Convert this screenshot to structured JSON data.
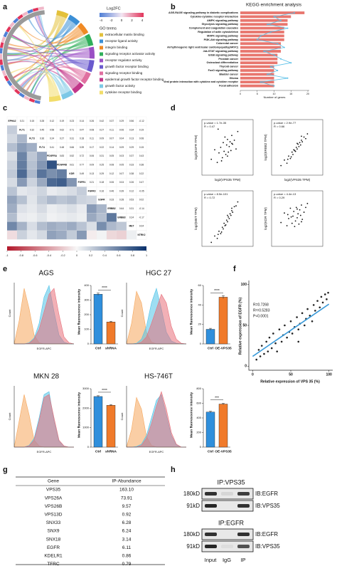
{
  "panel_labels": [
    "a",
    "b",
    "c",
    "d",
    "e",
    "f",
    "g",
    "h"
  ],
  "chord": {
    "legend_title": "Log2FC",
    "scale_ticks": [
      -4,
      -2,
      0,
      2,
      4
    ],
    "terms_title": "GO terms",
    "terms": [
      "extracellular matrix binding",
      "receptor ligand activity",
      "integrin binding",
      "signaling receptor activator activity",
      "receptor regulator activity",
      "growth factor receptor binding",
      "signaling receptor binding",
      "epidermal growth factor receptor binding",
      "growth factor activity",
      "cytokine receptor binding"
    ],
    "colors": [
      "#e3c13b",
      "#3b8fd6",
      "#f08a24",
      "#2fae5a",
      "#9a4fc4",
      "#6a5acd",
      "#e06fa0",
      "#c2378a",
      "#7cc8e6",
      "#f2dd6a"
    ]
  },
  "kegg": {
    "type": "bar",
    "title": "KEGG enrichment analysis",
    "x_label": "Number of genes",
    "categories": [
      "AGE-RAGE signaling pathway in diabetic complications",
      "Cytokine-cytokine receptor interaction",
      "AMPK signaling pathway",
      "Glycolysis signaling pathway",
      "Complement and coagulation cascades",
      "Regulation of actin cytoskeleton",
      "MAPK signaling pathway",
      "PI3K-Akt signaling pathway",
      "Colorectal cancer",
      "Arrhythmogenic right ventricular cardiomyopathy(ARVC)",
      "Jak-STAT signaling pathway",
      "ErbB signaling pathway",
      "Prostate cancer",
      "Osteoclast differentiation",
      "Thyroid cancer",
      "FoxO signaling pathway",
      "Bladder cancer",
      "Glioma",
      "Viral protein interaction with cytokine and cytokine receptor",
      "Focal adhesion"
    ],
    "values": [
      19,
      15,
      14,
      14,
      13,
      13,
      13,
      13,
      12,
      12,
      12,
      11,
      11,
      11,
      10,
      10,
      10,
      10,
      10,
      10
    ],
    "color": "#e8766e",
    "xlim": [
      0,
      20
    ],
    "xticks": [
      0,
      5,
      10,
      15,
      20
    ],
    "line_values": [
      16,
      10,
      12,
      8,
      14,
      9,
      6,
      5,
      11,
      13,
      7,
      10,
      12,
      15,
      9,
      11,
      8,
      14,
      6,
      10
    ],
    "line_color": "#5bc0e8",
    "x2lim": [
      0,
      20
    ]
  },
  "heatmap": {
    "type": "heatmap",
    "genes": [
      "EPHA2",
      "FLT1",
      "FLT3",
      "FLT4",
      "PDGFRA",
      "PDGFRB",
      "KDR",
      "FGFR1",
      "FGFR3",
      "EGFR",
      "ERBB2",
      "ERBB3",
      "MET",
      "NTRK2"
    ],
    "correlations": [
      [],
      [
        0.21
      ],
      [
        0.15,
        0.32
      ],
      [
        0.28,
        0.45,
        0.36
      ],
      [
        0.12,
        0.58,
        0.24,
        0.41
      ],
      [
        0.19,
        0.62,
        0.27,
        0.48,
        0.83
      ],
      [
        0.23,
        0.71,
        0.31,
        0.66,
        0.52,
        0.61
      ],
      [
        0.14,
        0.47,
        0.18,
        0.39,
        0.72,
        0.77,
        0.49
      ],
      [
        0.26,
        0.08,
        0.11,
        0.17,
        0.06,
        0.09,
        0.13,
        0.21
      ],
      [
        0.42,
        0.27,
        0.09,
        0.22,
        0.31,
        0.25,
        0.29,
        0.18,
        0.16
      ],
      [
        0.37,
        0.11,
        0.07,
        0.14,
        0.05,
        0.08,
        0.12,
        0.06,
        0.46,
        0.33
      ],
      [
        0.29,
        0.06,
        0.04,
        0.09,
        0.03,
        0.05,
        0.07,
        0.04,
        0.39,
        0.28,
        0.64
      ],
      [
        0.56,
        0.34,
        0.13,
        0.29,
        0.37,
        0.33,
        0.38,
        0.26,
        0.12,
        0.53,
        0.31,
        0.24
      ],
      [
        -0.12,
        0.19,
        0.08,
        0.15,
        0.43,
        0.38,
        0.22,
        0.47,
        -0.05,
        0.02,
        -0.14,
        -0.17,
        0.04
      ]
    ],
    "colorbar_ticks": [
      -1,
      -0.8,
      -0.6,
      -0.4,
      -0.2,
      0,
      0.2,
      0.4,
      0.6,
      0.8,
      1
    ]
  },
  "correlation_plots": [
    {
      "type": "scatter",
      "annotation": "p-value = 1.7e-35",
      "r_label": "R = 0.47",
      "ylabel": "log2(EGFR TPM)",
      "xlabel": "log2(VPS35 TPM)",
      "xlim": [
        2,
        8
      ],
      "ylim": [
        2,
        9
      ],
      "x": [
        3.1,
        3.5,
        3.8,
        4.0,
        4.2,
        4.4,
        4.5,
        4.6,
        4.8,
        4.9,
        5.0,
        5.1,
        5.2,
        5.3,
        5.4,
        5.5,
        5.6,
        5.8,
        6.0,
        6.2,
        4.3,
        4.7,
        5.0,
        5.5,
        3.9
      ],
      "y": [
        4.0,
        5.2,
        3.6,
        4.8,
        5.5,
        4.2,
        6.1,
        5.0,
        4.6,
        5.8,
        6.5,
        4.9,
        5.6,
        6.2,
        5.1,
        7.0,
        5.9,
        6.4,
        5.3,
        7.5,
        3.8,
        6.8,
        4.4,
        6.0,
        7.8
      ]
    },
    {
      "type": "scatter",
      "annotation": "p-value = 2.9e-77",
      "r_label": "R = 0.66",
      "ylabel": "log2(ERBB2 TPM)",
      "xlabel": "log2(VPS35 TPM)",
      "xlim": [
        2,
        8
      ],
      "ylim": [
        2,
        9
      ],
      "x": [
        3.1,
        3.5,
        3.8,
        4.0,
        4.2,
        4.4,
        4.5,
        4.6,
        4.8,
        4.9,
        5.0,
        5.1,
        5.2,
        5.3,
        5.4,
        5.5,
        5.6,
        5.8,
        6.0,
        6.2,
        4.3,
        4.7,
        5.0,
        5.5,
        3.9
      ],
      "y": [
        3.2,
        3.9,
        3.5,
        4.4,
        4.1,
        4.9,
        4.6,
        5.2,
        5.0,
        5.5,
        5.3,
        5.9,
        5.6,
        6.1,
        5.8,
        6.4,
        6.2,
        6.8,
        6.6,
        7.2,
        4.3,
        5.1,
        6.0,
        6.9,
        4.0
      ]
    },
    {
      "type": "scatter",
      "annotation": "p-value = 8.5e-101",
      "r_label": "R = 0.72",
      "ylabel": "log2(MET TPM)",
      "xlim": [
        2,
        8
      ],
      "ylim": [
        2,
        9
      ],
      "x": [
        3.1,
        3.5,
        3.8,
        4.0,
        4.2,
        4.4,
        4.5,
        4.6,
        4.8,
        4.9,
        5.0,
        5.1,
        5.2,
        5.3,
        5.4,
        5.5,
        5.6,
        5.8,
        6.0,
        6.2,
        4.3,
        4.7,
        5.0,
        5.5,
        3.9
      ],
      "y": [
        2.5,
        3.3,
        3.0,
        3.9,
        3.6,
        4.4,
        4.2,
        4.9,
        4.7,
        5.3,
        5.1,
        5.7,
        5.5,
        6.1,
        5.9,
        6.5,
        6.3,
        7.0,
        7.1,
        7.6,
        3.8,
        4.6,
        5.9,
        6.8,
        3.5
      ]
    },
    {
      "type": "scatter",
      "annotation": "p-value = 4.4e-13",
      "r_label": "R = 0.29",
      "ylabel": "log2(KDR TPM)",
      "xlim": [
        2,
        8
      ],
      "ylim": [
        2,
        9
      ],
      "x": [
        3.1,
        3.5,
        3.8,
        4.0,
        4.2,
        4.4,
        4.5,
        4.6,
        4.8,
        4.9,
        5.0,
        5.1,
        5.2,
        5.3,
        5.4,
        5.5,
        5.6,
        5.8,
        6.0,
        6.2,
        4.3,
        4.7,
        5.0,
        5.5,
        3.9
      ],
      "y": [
        5.0,
        6.2,
        4.6,
        5.5,
        6.8,
        4.9,
        5.8,
        6.4,
        5.2,
        6.9,
        5.6,
        6.1,
        4.8,
        6.6,
        5.9,
        7.2,
        5.4,
        6.3,
        6.9,
        7.4,
        5.7,
        4.5,
        6.7,
        5.1,
        6.0
      ]
    }
  ],
  "flow": [
    {
      "title": "AGS",
      "xlabel": "EGFR-APC",
      "ylabel": "Count",
      "xlim": [
        0,
        12
      ],
      "ylim": [
        0,
        100
      ],
      "x": [
        0,
        1,
        2,
        3,
        4,
        5,
        6,
        7,
        8,
        9,
        10,
        11,
        12
      ],
      "series": [
        {
          "color": "#f5a65b",
          "values": [
            0,
            40,
            95,
            60,
            15,
            2,
            0,
            0,
            0,
            0,
            0,
            0,
            0
          ]
        },
        {
          "color": "#4fc3e8",
          "values": [
            0,
            0,
            0,
            2,
            10,
            35,
            80,
            100,
            55,
            15,
            3,
            0,
            0
          ]
        },
        {
          "color": "#e8707a",
          "values": [
            0,
            0,
            0,
            1,
            8,
            25,
            55,
            85,
            95,
            50,
            12,
            2,
            0
          ]
        }
      ],
      "bar": {
        "type": "bar",
        "ylabel": "Mean fluorescence intensity",
        "categories": [
          "Ctrl",
          "shRNA"
        ],
        "values": [
          340,
          150
        ],
        "errors": [
          8,
          5
        ],
        "colors": [
          "#2f8fdc",
          "#f07a2a"
        ],
        "ylim": [
          0,
          400
        ],
        "yticks": [
          0,
          100,
          200,
          300,
          400
        ],
        "significance": "****"
      }
    },
    {
      "title": "HGC 27",
      "xlabel": "EGFR-APC",
      "ylabel": "Count",
      "xlim": [
        0,
        12
      ],
      "ylim": [
        0,
        100
      ],
      "x": [
        0,
        1,
        2,
        3,
        4,
        5,
        6,
        7,
        8,
        9,
        10,
        11,
        12
      ],
      "series": [
        {
          "color": "#f5a65b",
          "values": [
            0,
            35,
            90,
            70,
            20,
            3,
            0,
            0,
            0,
            0,
            0,
            0,
            0
          ]
        },
        {
          "color": "#4fc3e8",
          "values": [
            0,
            0,
            1,
            8,
            30,
            70,
            95,
            60,
            20,
            5,
            1,
            0,
            0
          ]
        },
        {
          "color": "#e8707a",
          "values": [
            0,
            0,
            0,
            3,
            12,
            35,
            60,
            85,
            70,
            30,
            8,
            1,
            0
          ]
        }
      ],
      "bar": {
        "type": "bar",
        "ylabel": "Mean fluorescence intensity",
        "categories": [
          "Ctrl",
          "OE-VPS35"
        ],
        "values": [
          15,
          48
        ],
        "errors": [
          1,
          1.5
        ],
        "colors": [
          "#2f8fdc",
          "#f07a2a"
        ],
        "ylim": [
          0,
          60
        ],
        "yticks": [
          0,
          20,
          40,
          60
        ],
        "significance": "****"
      }
    },
    {
      "title": "MKN 28",
      "xlabel": "EGFR-APC",
      "ylabel": "Count",
      "xlim": [
        0,
        12
      ],
      "ylim": [
        0,
        100
      ],
      "x": [
        0,
        1,
        2,
        3,
        4,
        5,
        6,
        7,
        8,
        9,
        10,
        11,
        12
      ],
      "series": [
        {
          "color": "#f5a65b",
          "values": [
            0,
            45,
            90,
            55,
            12,
            2,
            0,
            0,
            0,
            0,
            0,
            0,
            0
          ]
        },
        {
          "color": "#4fc3e8",
          "values": [
            0,
            0,
            0,
            3,
            15,
            50,
            90,
            95,
            45,
            10,
            2,
            0,
            0
          ]
        },
        {
          "color": "#e8707a",
          "values": [
            0,
            0,
            0,
            2,
            12,
            45,
            85,
            90,
            50,
            12,
            2,
            0,
            0
          ]
        }
      ],
      "bar": {
        "type": "bar",
        "ylabel": "Mean fluorescence intensity",
        "categories": [
          "Ctrl",
          "shRNA"
        ],
        "values": [
          2600,
          2150
        ],
        "errors": [
          40,
          30
        ],
        "colors": [
          "#2f8fdc",
          "#f07a2a"
        ],
        "ylim": [
          0,
          3000
        ],
        "yticks": [
          0,
          1000,
          2000,
          3000
        ],
        "significance": "****"
      }
    },
    {
      "title": "HS-746T",
      "xlabel": "EGFR-APC",
      "ylabel": "Count",
      "xlim": [
        0,
        12
      ],
      "ylim": [
        0,
        100
      ],
      "x": [
        0,
        1,
        2,
        3,
        4,
        5,
        6,
        7,
        8,
        9,
        10,
        11,
        12
      ],
      "series": [
        {
          "color": "#f5a65b",
          "values": [
            0,
            30,
            85,
            65,
            18,
            3,
            0,
            0,
            0,
            0,
            0,
            0,
            0
          ]
        },
        {
          "color": "#4fc3e8",
          "values": [
            0,
            0,
            1,
            5,
            20,
            50,
            80,
            90,
            55,
            20,
            4,
            0,
            0
          ]
        },
        {
          "color": "#e8707a",
          "values": [
            0,
            0,
            0,
            3,
            15,
            40,
            70,
            95,
            65,
            25,
            5,
            0,
            0
          ]
        }
      ],
      "bar": {
        "type": "bar",
        "ylabel": "Mean fluorescence intensity",
        "categories": [
          "Ctrl",
          "OE-VPS35"
        ],
        "values": [
          480,
          590
        ],
        "errors": [
          12,
          10
        ],
        "colors": [
          "#2f8fdc",
          "#f07a2a"
        ],
        "ylim": [
          0,
          800
        ],
        "yticks": [
          0,
          200,
          400,
          600,
          800
        ],
        "significance": "***"
      }
    }
  ],
  "expression_scatter": {
    "type": "scatter",
    "xlabel": "Relative expression of VPS 35 (%)",
    "ylabel": "Relative expression of EGFR (%)",
    "annotations": [
      "R=0.7268",
      "R²=0.5283",
      "P<0.0001"
    ],
    "color": "#222222",
    "line_color": "#3a9ad9",
    "xlim": [
      -5,
      105
    ],
    "ylim": [
      -5,
      105
    ],
    "xticks": [
      0,
      50,
      100
    ],
    "yticks": [
      0,
      50,
      100
    ],
    "x": [
      5,
      8,
      10,
      12,
      15,
      18,
      20,
      22,
      25,
      27,
      30,
      32,
      35,
      38,
      40,
      42,
      45,
      48,
      50,
      52,
      55,
      58,
      60,
      62,
      65,
      68,
      70,
      72,
      75,
      78,
      80,
      82,
      85,
      88,
      90,
      92,
      95,
      97,
      99,
      60
    ],
    "y": [
      8,
      20,
      12,
      25,
      15,
      30,
      18,
      35,
      22,
      40,
      28,
      18,
      45,
      30,
      38,
      50,
      35,
      42,
      55,
      40,
      48,
      60,
      45,
      52,
      65,
      50,
      58,
      70,
      62,
      55,
      75,
      68,
      80,
      72,
      85,
      78,
      88,
      82,
      90,
      30
    ],
    "trendline": {
      "x": [
        0,
        100
      ],
      "y": [
        12,
        76
      ]
    }
  },
  "table": {
    "header": [
      "Gene",
      "IP-Abundance"
    ],
    "rows": [
      [
        "VPS35",
        "163.10"
      ],
      [
        "VPS26A",
        "73.91"
      ],
      [
        "VPS26B",
        "9.57"
      ],
      [
        "VPS13D",
        "0.92"
      ],
      [
        "SNX33",
        "6.28"
      ],
      [
        "SNX9",
        "6.24"
      ],
      [
        "SNX18",
        "3.14"
      ],
      [
        "EGFR",
        "6.11"
      ],
      [
        "KDELR1",
        "0.86"
      ],
      [
        "TFRC",
        "0.79"
      ]
    ]
  },
  "blot": {
    "ip_titles": [
      "IP:VPS35",
      "IP:EGFR"
    ],
    "markers": [
      "180kD",
      "91kD"
    ],
    "ib_labels": [
      "IB:EGFR",
      "IB:VPS35"
    ],
    "lanes": [
      "Input",
      "IgG",
      "IP"
    ]
  }
}
